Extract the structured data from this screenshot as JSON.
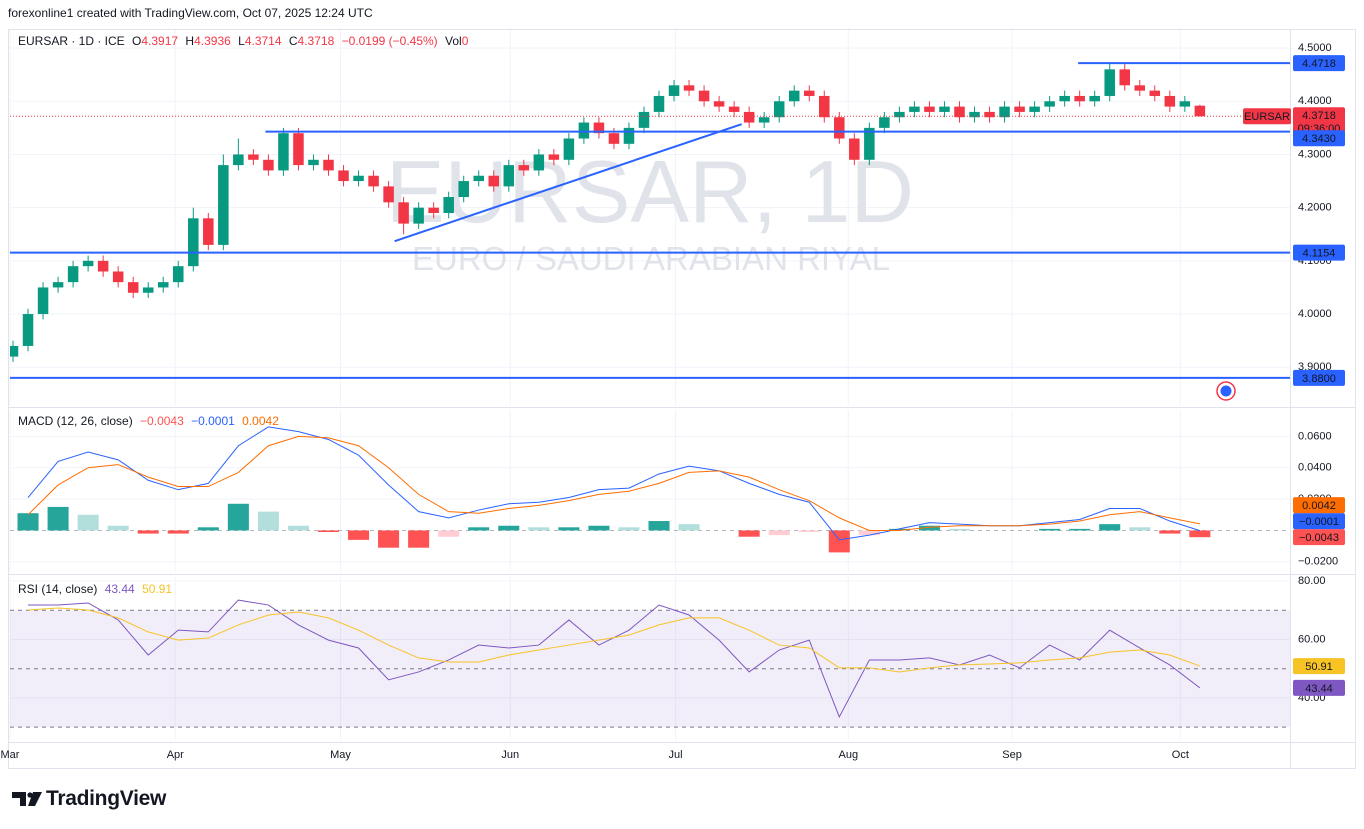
{
  "header": {
    "attribution": "forexonline1 created with TradingView.com, Oct 07, 2025 12:24 UTC"
  },
  "footer": {
    "brand": "TradingView"
  },
  "chart_data": [
    {
      "type": "candlestick",
      "title": "EURSAR · 1D · ICE",
      "watermark": "EURSAR, 1D",
      "watermark_subtitle": "EURO / SAUDI ARABIAN RIYAL",
      "ohlc_labels": [
        "O",
        "H",
        "L",
        "C"
      ],
      "change": "−0.0199 (−0.45%)",
      "volume": {
        "label": "Vol",
        "value": 0
      },
      "up_color": "#089981",
      "down_color": "#f23645",
      "level_color": "#2962ff",
      "x": [
        0,
        1,
        2,
        3,
        4,
        5,
        6,
        7,
        8,
        9,
        10,
        11,
        12,
        13,
        14,
        15,
        16,
        17,
        18,
        19,
        20,
        21,
        22,
        23,
        24,
        25,
        26,
        27,
        28,
        29,
        30,
        31,
        32,
        33,
        34,
        35,
        36,
        37,
        38,
        39,
        40,
        41,
        42,
        43,
        44,
        45,
        46,
        47,
        48,
        49,
        50,
        51,
        52,
        53,
        54,
        55,
        56,
        57,
        58,
        59,
        60,
        61,
        62,
        63,
        64,
        65,
        66,
        67,
        68,
        69,
        70,
        71,
        72,
        73,
        74,
        75,
        76,
        77,
        78,
        79
      ],
      "open": [
        3.92,
        3.94,
        4.0,
        4.05,
        4.06,
        4.09,
        4.1,
        4.08,
        4.06,
        4.04,
        4.05,
        4.06,
        4.09,
        4.18,
        4.13,
        4.28,
        4.3,
        4.29,
        4.27,
        4.34,
        4.28,
        4.29,
        4.27,
        4.25,
        4.26,
        4.24,
        4.21,
        4.17,
        4.2,
        4.19,
        4.22,
        4.25,
        4.26,
        4.24,
        4.28,
        4.27,
        4.3,
        4.29,
        4.33,
        4.36,
        4.34,
        4.32,
        4.35,
        4.38,
        4.41,
        4.43,
        4.42,
        4.4,
        4.39,
        4.38,
        4.36,
        4.37,
        4.4,
        4.42,
        4.41,
        4.37,
        4.33,
        4.29,
        4.35,
        4.37,
        4.38,
        4.39,
        4.38,
        4.39,
        4.37,
        4.38,
        4.37,
        4.39,
        4.38,
        4.39,
        4.4,
        4.41,
        4.4,
        4.41,
        4.46,
        4.43,
        4.42,
        4.41,
        4.39,
        4.3917
      ],
      "high": [
        3.95,
        4.01,
        4.06,
        4.07,
        4.1,
        4.11,
        4.11,
        4.09,
        4.07,
        4.06,
        4.07,
        4.1,
        4.2,
        4.19,
        4.3,
        4.33,
        4.31,
        4.3,
        4.35,
        4.35,
        4.3,
        4.3,
        4.28,
        4.27,
        4.27,
        4.25,
        4.22,
        4.21,
        4.21,
        4.23,
        4.26,
        4.27,
        4.27,
        4.29,
        4.29,
        4.31,
        4.31,
        4.34,
        4.37,
        4.37,
        4.35,
        4.36,
        4.39,
        4.42,
        4.44,
        4.44,
        4.43,
        4.41,
        4.4,
        4.39,
        4.38,
        4.41,
        4.43,
        4.43,
        4.42,
        4.38,
        4.34,
        4.36,
        4.38,
        4.39,
        4.4,
        4.4,
        4.4,
        4.4,
        4.39,
        4.39,
        4.4,
        4.4,
        4.4,
        4.41,
        4.42,
        4.42,
        4.42,
        4.47,
        4.47,
        4.44,
        4.43,
        4.42,
        4.41,
        4.3936
      ],
      "low": [
        3.91,
        3.93,
        3.99,
        4.04,
        4.05,
        4.08,
        4.07,
        4.05,
        4.03,
        4.03,
        4.04,
        4.05,
        4.08,
        4.12,
        4.12,
        4.27,
        4.28,
        4.26,
        4.26,
        4.27,
        4.27,
        4.26,
        4.24,
        4.24,
        4.23,
        4.2,
        4.15,
        4.16,
        4.18,
        4.18,
        4.21,
        4.24,
        4.23,
        4.23,
        4.26,
        4.26,
        4.28,
        4.28,
        4.32,
        4.33,
        4.31,
        4.31,
        4.34,
        4.37,
        4.4,
        4.41,
        4.39,
        4.38,
        4.37,
        4.35,
        4.35,
        4.36,
        4.39,
        4.4,
        4.36,
        4.32,
        4.28,
        4.28,
        4.34,
        4.36,
        4.37,
        4.37,
        4.37,
        4.36,
        4.36,
        4.36,
        4.36,
        4.37,
        4.37,
        4.38,
        4.39,
        4.39,
        4.39,
        4.4,
        4.42,
        4.41,
        4.4,
        4.38,
        4.38,
        4.3714
      ],
      "close": [
        3.94,
        4.0,
        4.05,
        4.06,
        4.09,
        4.1,
        4.08,
        4.06,
        4.04,
        4.05,
        4.06,
        4.09,
        4.18,
        4.13,
        4.28,
        4.3,
        4.29,
        4.27,
        4.34,
        4.28,
        4.29,
        4.27,
        4.25,
        4.26,
        4.24,
        4.21,
        4.17,
        4.2,
        4.19,
        4.22,
        4.25,
        4.26,
        4.24,
        4.28,
        4.27,
        4.3,
        4.29,
        4.33,
        4.36,
        4.34,
        4.32,
        4.35,
        4.38,
        4.41,
        4.43,
        4.42,
        4.4,
        4.39,
        4.38,
        4.36,
        4.37,
        4.4,
        4.42,
        4.41,
        4.37,
        4.33,
        4.29,
        4.35,
        4.37,
        4.38,
        4.39,
        4.38,
        4.39,
        4.37,
        4.38,
        4.37,
        4.39,
        4.38,
        4.39,
        4.4,
        4.41,
        4.4,
        4.41,
        4.46,
        4.43,
        4.42,
        4.41,
        4.39,
        4.4,
        4.3718
      ],
      "last_price": {
        "symbol": "EURSAR",
        "countdown": "09:36:00"
      },
      "levels": [
        {
          "value": 4.4718,
          "x_start": 70.9
        },
        {
          "value": 4.343,
          "label": "4.3430",
          "x_start": 16.8
        },
        {
          "value": 4.1154
        },
        {
          "value": 3.88,
          "label": "3.8800"
        }
      ],
      "trend": {
        "x": [
          25.4,
          48.5
        ],
        "y": [
          4.137,
          4.357
        ]
      },
      "xlim": [
        -0.2,
        85
      ],
      "xticks": [
        {
          "value": -0.2,
          "label": "Mar"
        },
        {
          "value": 10.8,
          "label": "Apr"
        },
        {
          "value": 21.8,
          "label": "May"
        },
        {
          "value": 33.1,
          "label": "Jun"
        },
        {
          "value": 44.1,
          "label": "Jul"
        },
        {
          "value": 55.6,
          "label": "Aug"
        },
        {
          "value": 66.5,
          "label": "Sep"
        },
        {
          "value": 77.7,
          "label": "Oct"
        }
      ],
      "ylim": [
        3.829,
        4.534
      ],
      "yticks": [
        {
          "value": 3.9,
          "label": "3.9000"
        },
        {
          "value": 4.0,
          "label": "4.0000"
        },
        {
          "value": 4.1,
          "label": "4.1000"
        },
        {
          "value": 4.2,
          "label": "4.2000"
        },
        {
          "value": 4.3,
          "label": "4.3000"
        },
        {
          "value": 4.4,
          "label": "4.4000"
        },
        {
          "value": 4.5,
          "label": "4.5000"
        }
      ],
      "grid": true
    },
    {
      "type": "combo",
      "title": "MACD (12, 26, close)",
      "x": [
        1,
        3,
        5,
        7,
        9,
        11,
        13,
        15,
        17,
        19,
        21,
        23,
        25,
        27,
        29,
        31,
        33,
        35,
        37,
        39,
        41,
        43,
        45,
        47,
        49,
        51,
        53,
        55,
        57,
        59,
        61,
        63,
        65,
        67,
        69,
        71,
        73,
        75,
        77,
        79
      ],
      "series": [
        {
          "kind": "bar",
          "color_positive": "#26a69a",
          "color_positive_falling": "#b2dfdb",
          "color_negative": "#ff5252",
          "color_negative_rising": "#ffcdd2",
          "values": [
            0.011,
            0.015,
            0.01,
            0.003,
            -0.002,
            -0.002,
            0.002,
            0.017,
            0.012,
            0.003,
            -0.001,
            -0.006,
            -0.011,
            -0.011,
            -0.004,
            0.002,
            0.003,
            0.002,
            0.002,
            0.003,
            0.002,
            0.006,
            0.004,
            0,
            -0.004,
            -0.003,
            -0.001,
            -0.014,
            -0.003,
            0.001,
            0.003,
            0.001,
            0,
            0,
            0.001,
            0.001,
            0.004,
            0.002,
            -0.002,
            -0.0043
          ],
          "value_labels": [
            null,
            null,
            null,
            null,
            null,
            null,
            null,
            null,
            null,
            null,
            null,
            null,
            null,
            null,
            null,
            null,
            null,
            null,
            null,
            null,
            null,
            null,
            null,
            null,
            null,
            null,
            null,
            null,
            null,
            null,
            null,
            null,
            null,
            null,
            null,
            null,
            null,
            null,
            null,
            "−0.0043"
          ]
        },
        {
          "kind": "line",
          "color": "#2962ff",
          "values": [
            0.021,
            0.044,
            0.05,
            0.045,
            0.032,
            0.026,
            0.03,
            0.054,
            0.066,
            0.063,
            0.058,
            0.048,
            0.029,
            0.012,
            0.008,
            0.013,
            0.017,
            0.018,
            0.021,
            0.026,
            0.027,
            0.036,
            0.041,
            0.038,
            0.03,
            0.023,
            0.018,
            -0.006,
            -0.003,
            0.001,
            0.005,
            0.004,
            0.003,
            0.003,
            0.005,
            0.007,
            0.014,
            0.014,
            0.006,
            -0.0001
          ],
          "value_labels": [
            null,
            null,
            null,
            null,
            null,
            null,
            null,
            null,
            null,
            null,
            null,
            null,
            null,
            null,
            null,
            null,
            null,
            null,
            null,
            null,
            null,
            null,
            null,
            null,
            null,
            null,
            null,
            null,
            null,
            null,
            null,
            null,
            null,
            null,
            null,
            null,
            null,
            null,
            null,
            "−0.0001"
          ]
        },
        {
          "kind": "line",
          "color": "#ff6d00",
          "values": [
            0.01,
            0.029,
            0.04,
            0.042,
            0.034,
            0.028,
            0.028,
            0.037,
            0.054,
            0.06,
            0.059,
            0.054,
            0.04,
            0.023,
            0.012,
            0.011,
            0.014,
            0.016,
            0.019,
            0.023,
            0.025,
            0.03,
            0.037,
            0.038,
            0.034,
            0.026,
            0.019,
            0.008,
            0,
            0,
            0.002,
            0.003,
            0.003,
            0.003,
            0.004,
            0.006,
            0.01,
            0.012,
            0.008,
            0.0042
          ]
        }
      ],
      "zero_line": true,
      "ylim": [
        -0.0265,
        0.0768
      ],
      "yticks": [
        {
          "value": -0.02,
          "label": "−0.0200"
        },
        {
          "value": 0.02,
          "label": "0.0200"
        },
        {
          "value": 0.04,
          "label": "0.0400"
        },
        {
          "value": 0.06,
          "label": "0.0600"
        }
      ],
      "grid": true
    },
    {
      "type": "line",
      "title": "RSI (14, close)",
      "x": [
        1,
        3,
        5,
        7,
        9,
        11,
        13,
        15,
        17,
        19,
        21,
        23,
        25,
        27,
        29,
        31,
        33,
        35,
        37,
        39,
        41,
        43,
        45,
        47,
        49,
        51,
        53,
        55,
        57,
        59,
        61,
        63,
        65,
        67,
        69,
        71,
        73,
        75,
        77,
        79
      ],
      "series": [
        {
          "color": "#7e57c2",
          "values": [
            71.8,
            71.8,
            72.5,
            66.7,
            54.7,
            63.2,
            62.6,
            73.5,
            71.8,
            65,
            59.8,
            57.1,
            46.2,
            48.9,
            53,
            58.1,
            57.1,
            58.1,
            66.7,
            58.1,
            63.2,
            71.8,
            68.4,
            59.8,
            48.9,
            56.4,
            59.8,
            33.5,
            53,
            53,
            53.7,
            51.3,
            54.7,
            50.3,
            58.1,
            53,
            63.2,
            57.1,
            51.3,
            43.44
          ]
        },
        {
          "color": "#f7c325",
          "values": [
            70.1,
            70.8,
            70.1,
            67.4,
            62.6,
            59.8,
            60.5,
            65,
            68.4,
            69.4,
            67.4,
            63.2,
            58.1,
            53.7,
            52.3,
            52.3,
            54.7,
            56.4,
            58.1,
            59.8,
            61.5,
            65,
            67.4,
            67.4,
            63.2,
            58.1,
            57.1,
            50.3,
            50.3,
            48.9,
            50.3,
            51.3,
            51.6,
            52,
            53,
            53.7,
            55.7,
            56.4,
            54.7,
            50.91
          ]
        }
      ],
      "upper_band": 70,
      "lower_band": 30,
      "midline": 50,
      "band_color": "#7e57c2",
      "ylim": [
        25.6,
        81.4
      ],
      "yticks": [
        {
          "value": 40,
          "label": "40.00"
        },
        {
          "value": 60,
          "label": "60.00"
        },
        {
          "value": 80,
          "label": "80.00"
        }
      ],
      "grid": true
    }
  ]
}
